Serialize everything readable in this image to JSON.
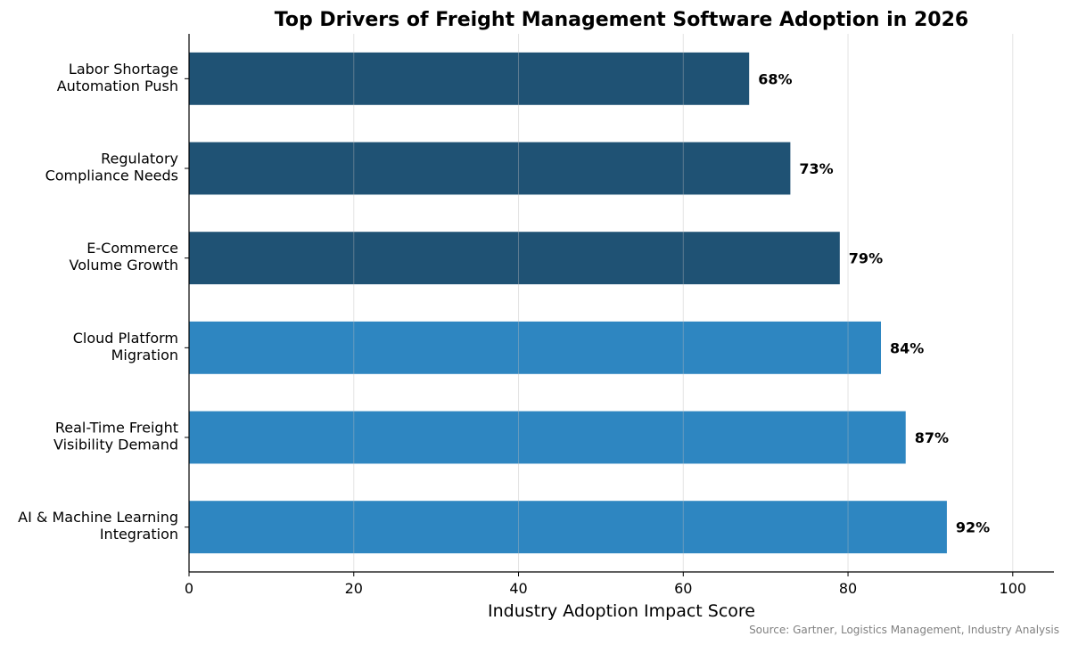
{
  "chart_data": {
    "type": "bar",
    "orientation": "horizontal",
    "title": "Top Drivers of Freight Management Software Adoption in 2026",
    "xlabel": "Industry Adoption Impact Score",
    "ylabel": "",
    "xlim": [
      0,
      105
    ],
    "xticks": [
      0,
      20,
      40,
      60,
      80,
      100
    ],
    "grid": "vertical",
    "categories": [
      [
        "AI & Machine Learning",
        "Integration"
      ],
      [
        "Real-Time Freight",
        "Visibility Demand"
      ],
      [
        "Cloud Platform",
        "Migration"
      ],
      [
        "E-Commerce",
        "Volume Growth"
      ],
      [
        "Regulatory",
        "Compliance Needs"
      ],
      [
        "Labor Shortage",
        "Automation Push"
      ]
    ],
    "values": [
      92,
      87,
      84,
      79,
      73,
      68
    ],
    "data_labels": [
      "92%",
      "87%",
      "84%",
      "79%",
      "73%",
      "68%"
    ],
    "bar_colors": [
      "#2e86c1",
      "#2e86c1",
      "#2e86c1",
      "#1f5274",
      "#1f5274",
      "#1f5274"
    ],
    "source": "Source: Gartner, Logistics Management, Industry Analysis"
  }
}
